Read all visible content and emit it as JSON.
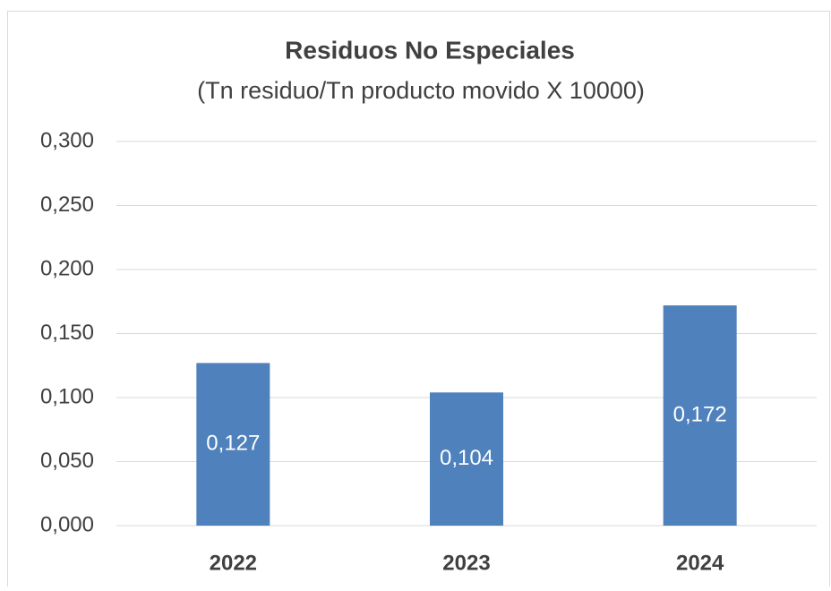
{
  "chart_data": {
    "type": "bar",
    "title": "Residuos No Especiales",
    "subtitle": "(Tn residuo/Tn producto movido X 10000)",
    "categories": [
      "2022",
      "2023",
      "2024"
    ],
    "values": [
      0.127,
      0.104,
      0.172
    ],
    "value_labels": [
      "0,127",
      "0,104",
      "0,172"
    ],
    "color": "#4f81bd",
    "ylim": [
      0,
      0.3
    ],
    "yticks": [
      {
        "value": 0,
        "label": "0,000"
      },
      {
        "value": 0.05,
        "label": "0,050"
      },
      {
        "value": 0.1,
        "label": "0,100"
      },
      {
        "value": 0.15,
        "label": "0,150"
      },
      {
        "value": 0.2,
        "label": "0,200"
      },
      {
        "value": 0.25,
        "label": "0,250"
      },
      {
        "value": 0.3,
        "label": "0,300"
      }
    ],
    "grid": true
  }
}
